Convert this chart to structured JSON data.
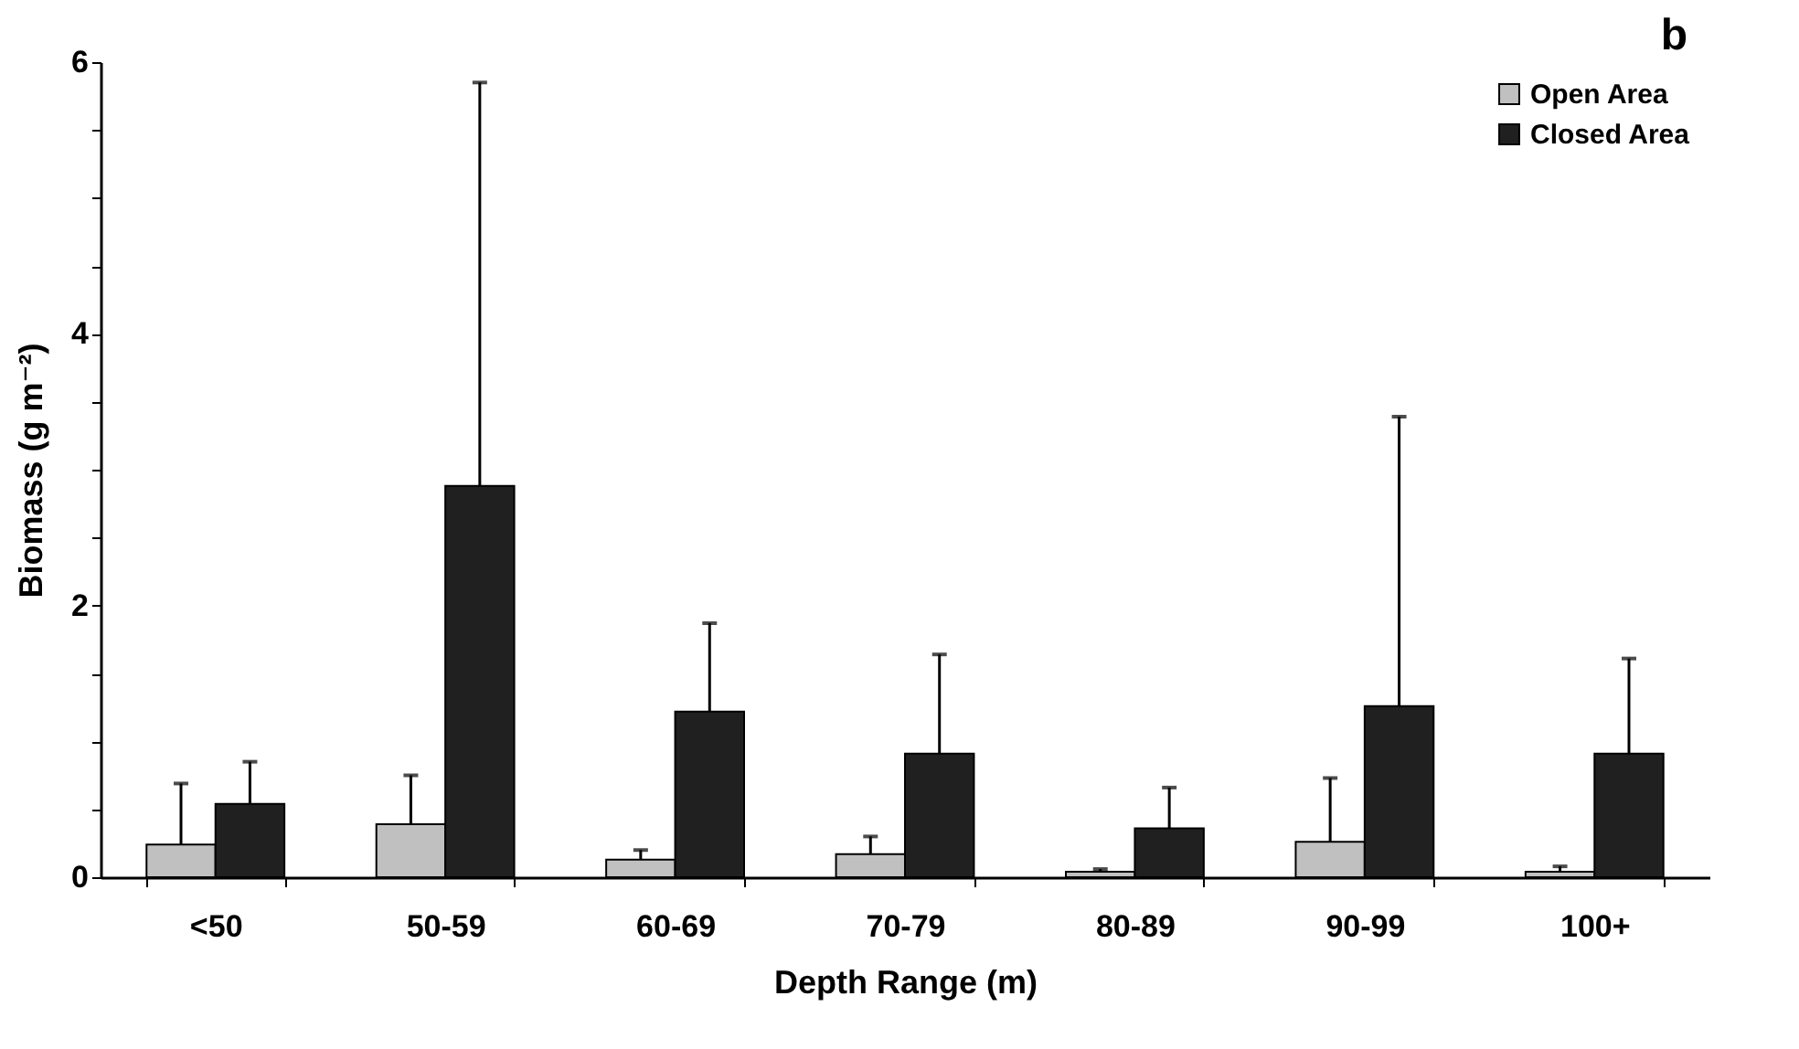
{
  "chart_data": {
    "type": "bar",
    "xlabel": "Depth Range (m)",
    "ylabel": "Biomass (g m⁻²)",
    "categories": [
      "<50",
      "50-59",
      "60-69",
      "70-79",
      "80-89",
      "90-99",
      "100+"
    ],
    "series": [
      {
        "name": "Open Area",
        "color": "#c0c0c0",
        "values": [
          0.24,
          0.39,
          0.13,
          0.17,
          0.04,
          0.26,
          0.04
        ],
        "errors": [
          [
            0.24,
            0.69
          ],
          [
            0.39,
            0.75
          ],
          [
            0.13,
            0.2
          ],
          [
            0.17,
            0.3
          ],
          [
            0.04,
            0.06
          ],
          [
            0.26,
            0.73
          ],
          [
            0.04,
            0.08
          ]
        ]
      },
      {
        "name": "Closed Area",
        "color": "#202020",
        "values": [
          0.54,
          2.88,
          1.22,
          0.91,
          0.36,
          1.26,
          0.91
        ],
        "errors": [
          [
            0.54,
            0.85
          ],
          [
            2.88,
            5.85
          ],
          [
            1.22,
            1.87
          ],
          [
            0.91,
            1.64
          ],
          [
            0.36,
            0.66
          ],
          [
            1.26,
            3.39
          ],
          [
            0.91,
            1.61
          ]
        ]
      }
    ],
    "ylim": [
      0,
      6
    ],
    "yticks": [
      0,
      {
        "value": 0.5,
        "label": null
      },
      {
        "value": 1,
        "label": null
      },
      {
        "value": 1.5,
        "label": null
      },
      2,
      {
        "value": 2.5,
        "label": null
      },
      {
        "value": 3,
        "label": null
      },
      {
        "value": 3.5,
        "label": null
      },
      4,
      {
        "value": 4.5,
        "label": null
      },
      {
        "value": 5,
        "label": null
      },
      {
        "value": 5.5,
        "label": null
      },
      6
    ],
    "grid": false,
    "legend": "top right",
    "annotations": [
      "b"
    ]
  }
}
